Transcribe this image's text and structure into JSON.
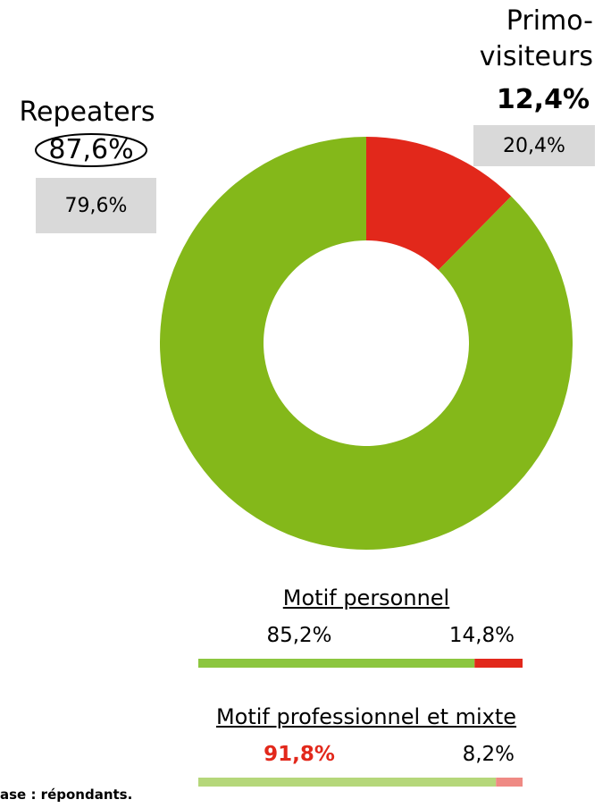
{
  "chart_data": [
    {
      "type": "donut",
      "categories": [
        "Repeaters",
        "Primo-visiteurs"
      ],
      "values": [
        87.6,
        12.4
      ],
      "value_labels": [
        "87,6%",
        "12,4%"
      ],
      "colors": [
        "#84b81a",
        "#e2281b"
      ],
      "reference_labels": [
        "79,6%",
        "20,4%"
      ]
    },
    {
      "type": "stacked_bar",
      "title": "Motif personnel",
      "values": [
        85.2,
        14.8
      ],
      "value_labels": [
        "85,2%",
        "14,8%"
      ],
      "colors": [
        "#8cc63f",
        "#e2281b"
      ],
      "label_colors": [
        "#000000",
        "#000000"
      ]
    },
    {
      "type": "stacked_bar",
      "title": "Motif professionnel et mixte",
      "values": [
        91.8,
        8.2
      ],
      "value_labels": [
        "91,8%",
        "8,2%"
      ],
      "colors": [
        "#b5d77a",
        "#ef8a84"
      ],
      "label_colors": [
        "#e2281b",
        "#000000"
      ]
    }
  ],
  "footnote": "ase : répondants."
}
